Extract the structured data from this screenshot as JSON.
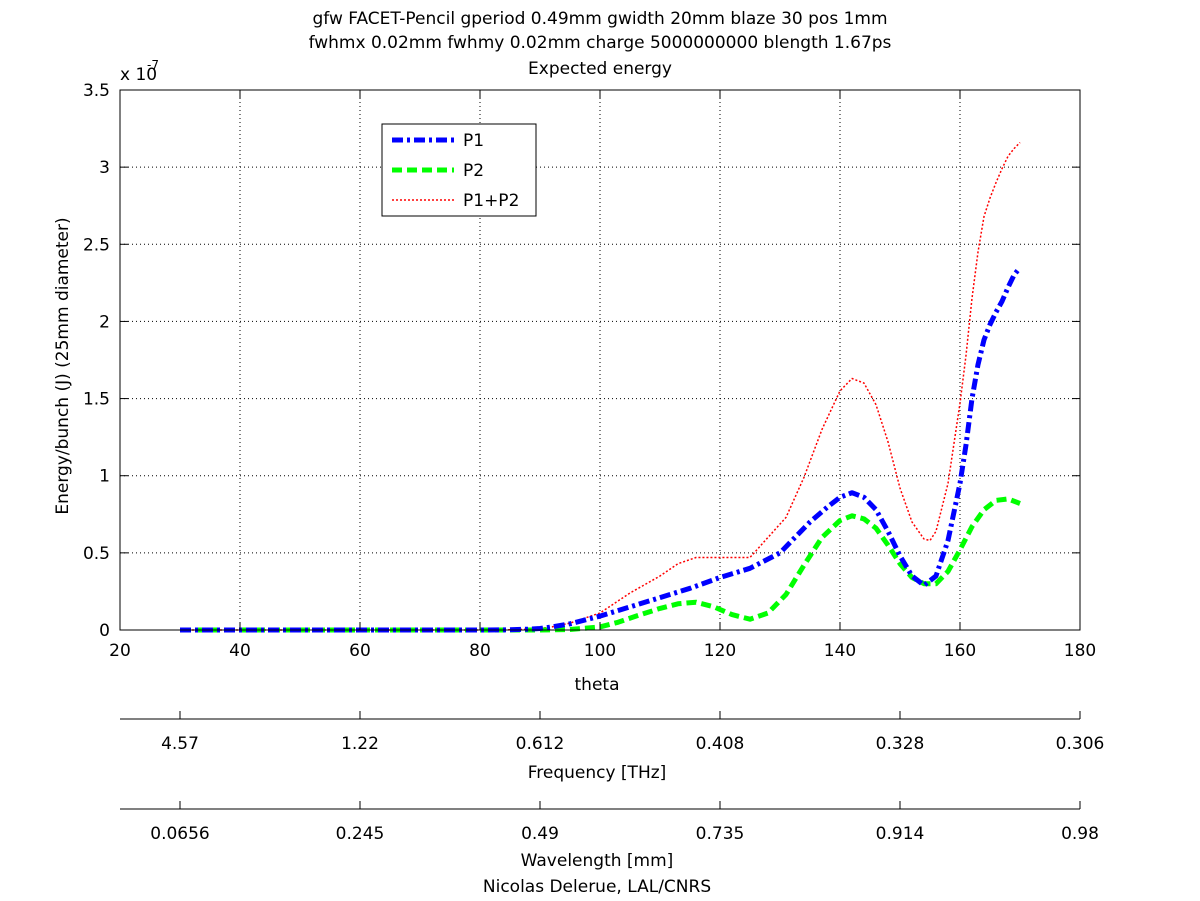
{
  "chart_data": {
    "type": "line",
    "title_lines": [
      "gfw FACET-Pencil gperiod 0.49mm gwidth 20mm blaze 30 pos 1mm",
      "fwhmx 0.02mm fwhmy 0.02mm charge 5000000000 blength 1.67ps",
      "Expected energy"
    ],
    "xlabel": "theta",
    "ylabel": "Energy/bunch (J) (25mm diameter)",
    "y_multiplier": "x 10",
    "y_multiplier_exponent": "-7",
    "xlim": [
      20,
      180
    ],
    "ylim": [
      0,
      3.5
    ],
    "xticks": [
      20,
      40,
      60,
      80,
      100,
      120,
      140,
      160,
      180
    ],
    "xtick_labels": [
      "20",
      "40",
      "60",
      "80",
      "100",
      "120",
      "140",
      "160",
      "180"
    ],
    "yticks": [
      0,
      0.5,
      1,
      1.5,
      2,
      2.5,
      3,
      3.5
    ],
    "ytick_labels": [
      "0",
      "0.5",
      "1",
      "1.5",
      "2",
      "2.5",
      "3",
      "3.5"
    ],
    "grid": true,
    "legend_position": "top-left inside",
    "series": [
      {
        "name": "P1",
        "color": "#0000ff",
        "style": "dashdot",
        "x": [
          30,
          40,
          50,
          60,
          70,
          80,
          85,
          88,
          90,
          92,
          95,
          100,
          105,
          110,
          115,
          120,
          125,
          130,
          135,
          138,
          140,
          142,
          144,
          146,
          148,
          150,
          152,
          154,
          156,
          158,
          160,
          161,
          162,
          163,
          164,
          165,
          166,
          167,
          168,
          169,
          170
        ],
        "values": [
          0,
          0,
          0,
          0,
          0,
          0,
          0.001,
          0.005,
          0.01,
          0.02,
          0.04,
          0.09,
          0.15,
          0.21,
          0.27,
          0.34,
          0.4,
          0.5,
          0.7,
          0.8,
          0.86,
          0.89,
          0.86,
          0.78,
          0.64,
          0.48,
          0.35,
          0.29,
          0.35,
          0.58,
          0.95,
          1.2,
          1.5,
          1.72,
          1.88,
          1.98,
          2.06,
          2.13,
          2.22,
          2.3,
          2.35
        ]
      },
      {
        "name": "P2",
        "color": "#00ff00",
        "style": "dashed",
        "x": [
          30,
          40,
          50,
          60,
          70,
          80,
          85,
          88,
          90,
          95,
          100,
          103,
          106,
          110,
          113,
          116,
          119,
          122,
          125,
          128,
          131,
          134,
          137,
          140,
          142,
          144,
          146,
          148,
          150,
          152,
          154,
          156,
          158,
          160,
          162,
          164,
          166,
          168,
          170
        ],
        "values": [
          0,
          0,
          0,
          0,
          0,
          0,
          0,
          0,
          0,
          0.003,
          0.02,
          0.05,
          0.09,
          0.14,
          0.17,
          0.18,
          0.15,
          0.1,
          0.07,
          0.11,
          0.23,
          0.42,
          0.6,
          0.71,
          0.74,
          0.72,
          0.66,
          0.55,
          0.43,
          0.34,
          0.3,
          0.3,
          0.38,
          0.52,
          0.67,
          0.78,
          0.84,
          0.85,
          0.82
        ]
      },
      {
        "name": "P1+P2",
        "color": "#ff0000",
        "style": "dotted",
        "x": [
          30,
          40,
          50,
          60,
          70,
          80,
          85,
          88,
          90,
          92,
          95,
          100,
          105,
          110,
          113,
          116,
          119,
          122,
          125,
          128,
          131,
          134,
          137,
          140,
          142,
          144,
          146,
          148,
          150,
          152,
          154,
          155,
          156,
          158,
          160,
          161,
          162,
          163,
          164,
          165,
          166,
          167,
          168,
          169,
          170
        ],
        "values": [
          0,
          0,
          0,
          0,
          0,
          0,
          0.001,
          0.005,
          0.01,
          0.02,
          0.045,
          0.11,
          0.24,
          0.35,
          0.43,
          0.47,
          0.47,
          0.47,
          0.47,
          0.6,
          0.73,
          0.99,
          1.3,
          1.55,
          1.63,
          1.6,
          1.46,
          1.22,
          0.92,
          0.7,
          0.59,
          0.58,
          0.64,
          0.95,
          1.47,
          1.78,
          2.15,
          2.45,
          2.68,
          2.8,
          2.9,
          2.99,
          3.07,
          3.12,
          3.16
        ]
      }
    ],
    "secondary_axes": [
      {
        "label": "Frequency [THz]",
        "tick_labels": [
          "4.57",
          "1.22",
          "0.612",
          "0.408",
          "0.328",
          "0.306"
        ],
        "tick_positions_theta": [
          30,
          60,
          90,
          120,
          150,
          180
        ]
      },
      {
        "label": "Wavelength [mm]",
        "tick_labels": [
          "0.0656",
          "0.245",
          "0.49",
          "0.735",
          "0.914",
          "0.98"
        ],
        "tick_positions_theta": [
          30,
          60,
          90,
          120,
          150,
          180
        ]
      }
    ],
    "footer": "Nicolas Delerue, LAL/CNRS"
  }
}
